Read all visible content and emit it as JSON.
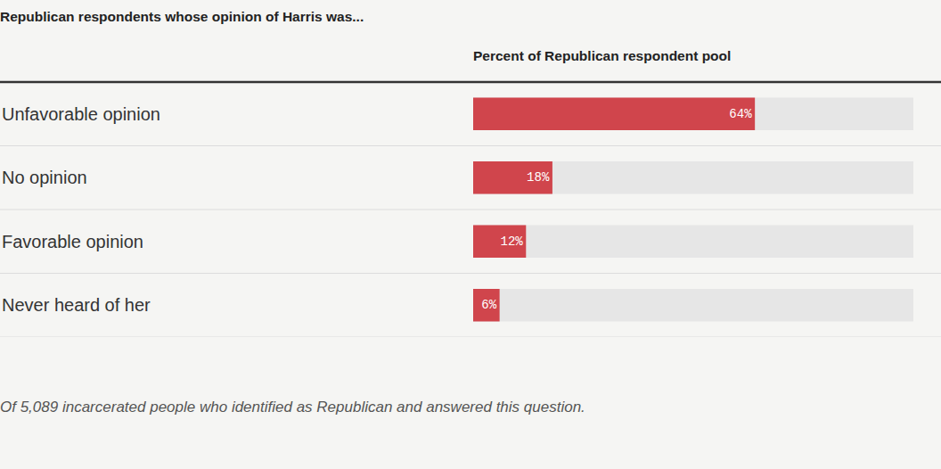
{
  "chart_data": {
    "type": "bar",
    "orientation": "horizontal",
    "ylabel": "Republican respondents whose opinion of Harris was...",
    "xlabel": "Percent of Republican respondent pool",
    "annotations": [
      "Of 5,089 incarcerated people who identified as Republican and answered this question."
    ],
    "categories": [
      "Unfavorable opinion",
      "No opinion",
      "Favorable opinion",
      "Never heard of her"
    ],
    "values": [
      64,
      18,
      12,
      6
    ],
    "value_labels": [
      "64%",
      "18%",
      "12%",
      "6%"
    ],
    "data_labels": true,
    "color": "#d0454c",
    "xlim": [
      0,
      100
    ],
    "grid": false,
    "tick_labels": "y"
  }
}
